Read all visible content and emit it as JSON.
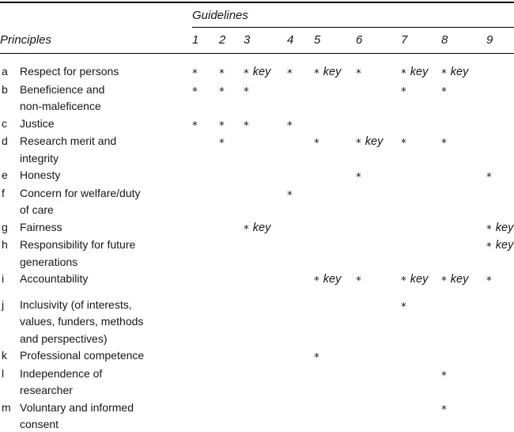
{
  "table": {
    "guidelines_label": "Guidelines",
    "principles_label": "Principles",
    "columns": [
      "1",
      "2",
      "3",
      "4",
      "5",
      "6",
      "7",
      "8",
      "9"
    ],
    "rows": [
      {
        "letter": "a",
        "label_lines": [
          "Respect for persons"
        ],
        "cells": [
          "*",
          "*",
          "* key",
          "*",
          "* key",
          "*",
          "* key",
          "* key",
          ""
        ]
      },
      {
        "letter": "b",
        "label_lines": [
          "Beneficience and",
          "non-maleficence"
        ],
        "cells": [
          "*",
          "*",
          "*",
          "",
          "",
          "",
          "*",
          "*",
          ""
        ]
      },
      {
        "letter": "c",
        "label_lines": [
          "Justice"
        ],
        "cells": [
          "*",
          "*",
          "*",
          "*",
          "",
          "",
          "",
          "",
          ""
        ]
      },
      {
        "letter": "d",
        "label_lines": [
          "Research merit and",
          "integrity"
        ],
        "cells": [
          "",
          "*",
          "",
          "",
          "*",
          "* key",
          "*",
          "*",
          ""
        ]
      },
      {
        "letter": "e",
        "label_lines": [
          "Honesty"
        ],
        "cells": [
          "",
          "",
          "",
          "",
          "",
          "*",
          "",
          "",
          "*"
        ]
      },
      {
        "letter": "f",
        "label_lines": [
          "Concern for welfare/duty",
          "of care"
        ],
        "cells": [
          "",
          "",
          "",
          "*",
          "",
          "",
          "",
          "",
          ""
        ]
      },
      {
        "letter": "g",
        "label_lines": [
          "Fairness"
        ],
        "cells": [
          "",
          "",
          "* key",
          "",
          "",
          "",
          "",
          "",
          "* key"
        ]
      },
      {
        "letter": "h",
        "label_lines": [
          "Responsibility for future",
          "generations"
        ],
        "cells": [
          "",
          "",
          "",
          "",
          "",
          "",
          "",
          "",
          "* key"
        ]
      },
      {
        "letter": "i",
        "label_lines": [
          "Accountability"
        ],
        "cells": [
          "",
          "",
          "",
          "",
          "* key",
          "*",
          "* key",
          "* key",
          "*"
        ]
      },
      {
        "letter": "j",
        "label_lines": [
          "Inclusivity (of interests,",
          "values, funders, methods",
          "and perspectives)"
        ],
        "cells": [
          "",
          "",
          "",
          "",
          "",
          "",
          "*",
          "",
          ""
        ]
      },
      {
        "letter": "k",
        "label_lines": [
          "Professional competence"
        ],
        "cells": [
          "",
          "",
          "",
          "",
          "*",
          "",
          "",
          "",
          ""
        ]
      },
      {
        "letter": "l",
        "label_lines": [
          "Independence of",
          "researcher"
        ],
        "cells": [
          "",
          "",
          "",
          "",
          "",
          "",
          "",
          "*",
          ""
        ]
      },
      {
        "letter": "m",
        "label_lines": [
          "Voluntary and informed",
          "consent"
        ],
        "cells": [
          "",
          "",
          "",
          "",
          "",
          "",
          "",
          "*",
          ""
        ]
      }
    ]
  }
}
